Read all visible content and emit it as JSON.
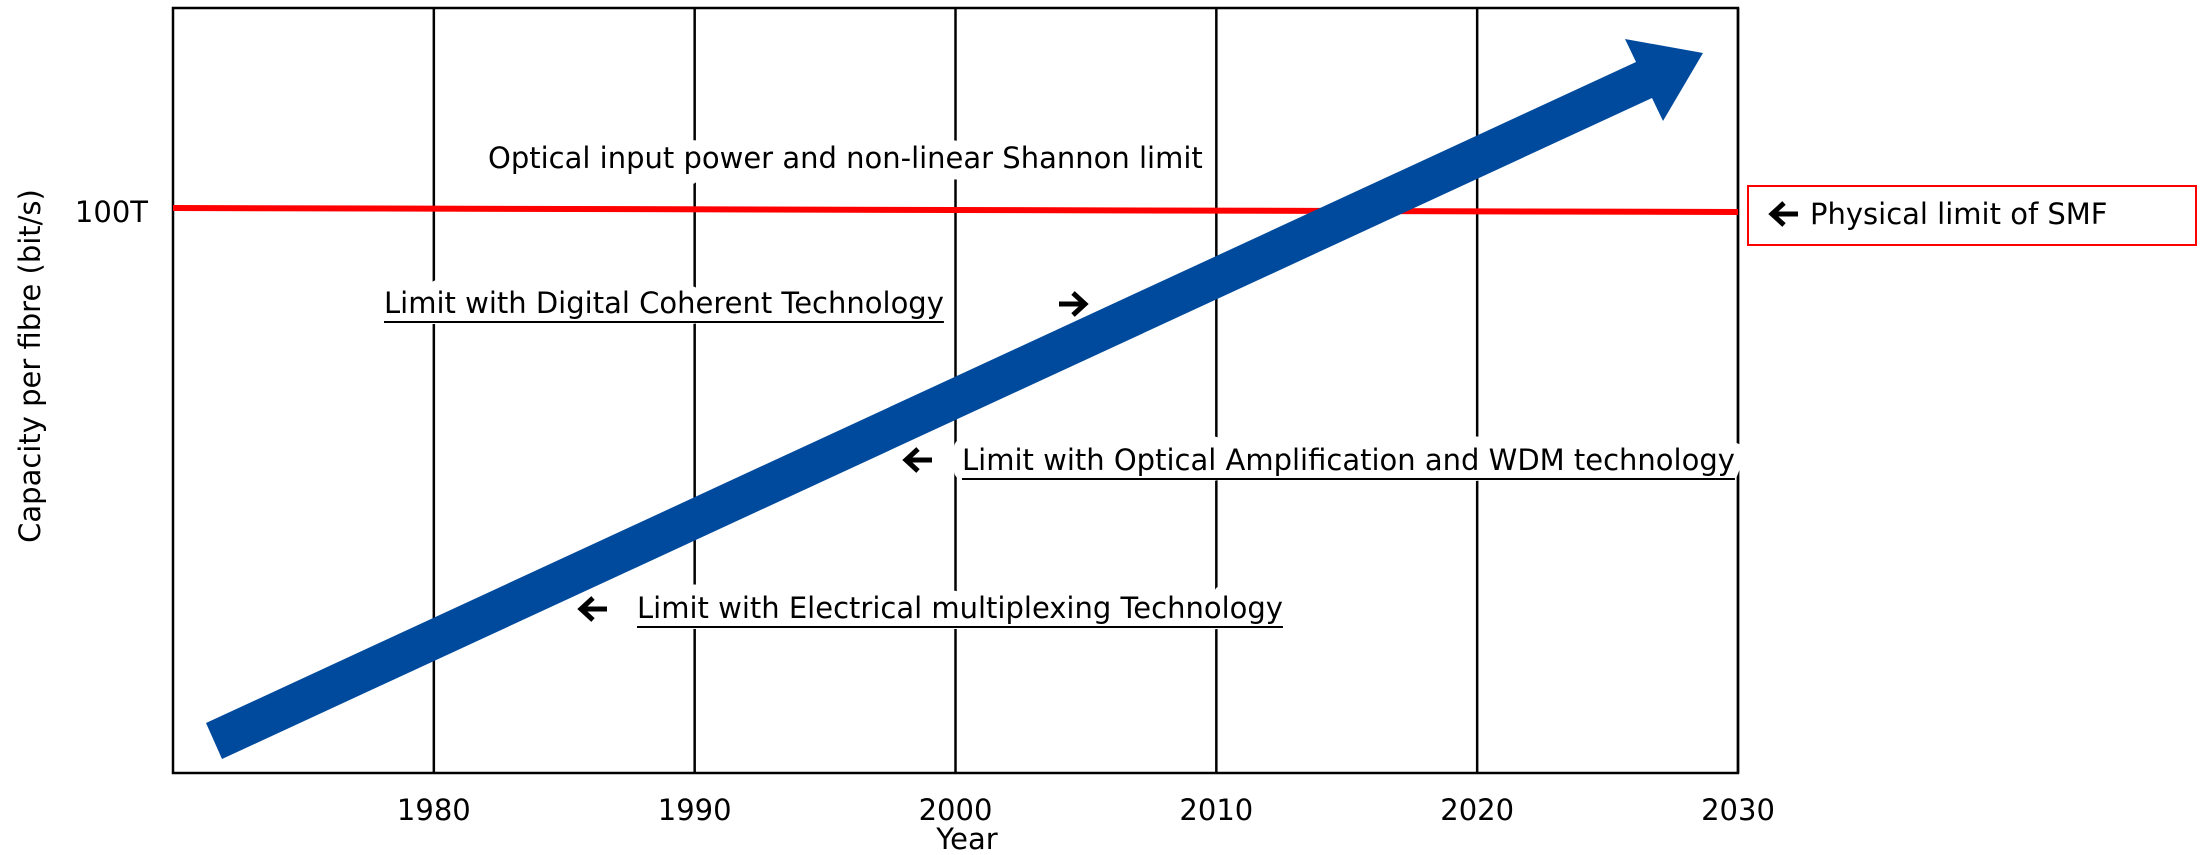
{
  "chart_data": {
    "type": "diagram",
    "x_label": "Year",
    "y_label": "Capacity per fibre (bit/s)",
    "xlim": [
      1970,
      2030
    ],
    "xticks": [
      1980,
      1990,
      2000,
      2010,
      2020,
      2030
    ],
    "ytick_label": "100T",
    "limit_label": "Physical limit of SMF",
    "annotations": [
      "Optical input power and non-linear Shannon limit",
      "Limit with Digital Coherent Technology",
      "Limit with Optical Amplification and WDM technology",
      "Limit with Electrical multiplexing Technology"
    ],
    "limit_color": "#ff0000",
    "trend_color": "#004a9e"
  }
}
